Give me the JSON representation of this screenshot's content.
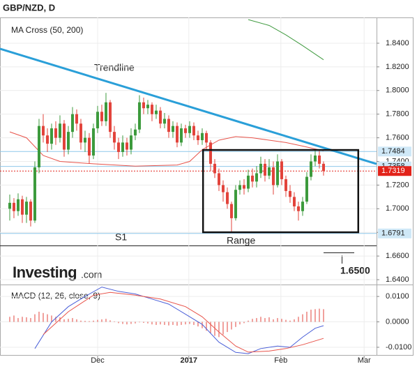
{
  "chart_data": [
    {
      "type": "candlestick",
      "title": "GBP/NZD, D",
      "indicator_label": "MA Cross (50, 200)",
      "categories": [
        null,
        null,
        null,
        null,
        null,
        null,
        null,
        null,
        null,
        null,
        null,
        null,
        null,
        null,
        null,
        null,
        null,
        null,
        null,
        null,
        null,
        null,
        null,
        null,
        null,
        null,
        null,
        null,
        null,
        null,
        null,
        null,
        null,
        null,
        null,
        null,
        null,
        null,
        null,
        null,
        null,
        null,
        null,
        null,
        null,
        null,
        null,
        null,
        null,
        null,
        null,
        null,
        null,
        null,
        null,
        null,
        null,
        null,
        null,
        null,
        null,
        null,
        null,
        null,
        null,
        null,
        null,
        null,
        null,
        null,
        null,
        null,
        null,
        null,
        null,
        null
      ],
      "open": [
        1.7,
        1.705,
        1.698,
        1.708,
        1.695,
        1.706,
        1.69,
        1.735,
        1.77,
        1.762,
        1.755,
        1.768,
        1.76,
        1.772,
        1.75,
        1.765,
        1.78,
        1.772,
        1.756,
        1.76,
        1.745,
        1.768,
        1.782,
        1.774,
        1.79,
        1.765,
        1.756,
        1.748,
        1.756,
        1.75,
        1.762,
        1.767,
        1.79,
        1.785,
        1.788,
        1.78,
        1.783,
        1.772,
        1.776,
        1.765,
        1.77,
        1.756,
        1.768,
        1.764,
        1.77,
        1.762,
        1.758,
        1.764,
        1.756,
        1.738,
        1.73,
        1.72,
        1.714,
        1.704,
        1.692,
        1.716,
        1.72,
        1.717,
        1.728,
        1.723,
        1.73,
        1.738,
        1.728,
        1.735,
        1.72,
        1.74,
        1.725,
        1.715,
        1.71,
        1.702,
        1.698,
        1.706,
        1.727,
        1.74,
        1.745,
        1.738
      ],
      "high": [
        1.712,
        1.709,
        1.713,
        1.711,
        1.71,
        1.708,
        1.74,
        1.776,
        1.78,
        1.768,
        1.772,
        1.774,
        1.779,
        1.775,
        1.77,
        1.786,
        1.784,
        1.776,
        1.766,
        1.764,
        1.772,
        1.787,
        1.788,
        1.798,
        1.792,
        1.77,
        1.76,
        1.762,
        1.76,
        1.768,
        1.772,
        1.796,
        1.794,
        1.792,
        1.79,
        1.788,
        1.786,
        1.781,
        1.779,
        1.774,
        1.773,
        1.772,
        1.771,
        1.774,
        1.773,
        1.766,
        1.768,
        1.766,
        1.758,
        1.742,
        1.734,
        1.724,
        1.718,
        1.706,
        1.72,
        1.724,
        1.725,
        1.733,
        1.734,
        1.736,
        1.744,
        1.742,
        1.742,
        1.74,
        1.746,
        1.742,
        1.728,
        1.72,
        1.714,
        1.706,
        1.71,
        1.731,
        1.746,
        1.75,
        1.749,
        1.74
      ],
      "low": [
        1.69,
        1.692,
        1.694,
        1.688,
        1.688,
        1.685,
        1.688,
        1.73,
        1.756,
        1.748,
        1.75,
        1.754,
        1.756,
        1.744,
        1.746,
        1.76,
        1.766,
        1.75,
        1.748,
        1.738,
        1.742,
        1.764,
        1.77,
        1.77,
        1.76,
        1.75,
        1.742,
        1.744,
        1.745,
        1.746,
        1.758,
        1.764,
        1.78,
        1.78,
        1.774,
        1.776,
        1.768,
        1.768,
        1.76,
        1.76,
        1.752,
        1.753,
        1.76,
        1.76,
        1.758,
        1.754,
        1.754,
        1.75,
        1.732,
        1.726,
        1.715,
        1.706,
        1.7,
        1.68,
        1.69,
        1.712,
        1.712,
        1.714,
        1.718,
        1.718,
        1.726,
        1.723,
        1.725,
        1.712,
        1.718,
        1.72,
        1.71,
        1.705,
        1.698,
        1.69,
        1.694,
        1.704,
        1.724,
        1.736,
        1.734,
        1.728
      ],
      "close": [
        1.705,
        1.698,
        1.708,
        1.695,
        1.706,
        1.69,
        1.735,
        1.77,
        1.762,
        1.755,
        1.768,
        1.76,
        1.772,
        1.75,
        1.765,
        1.78,
        1.772,
        1.756,
        1.76,
        1.745,
        1.768,
        1.782,
        1.774,
        1.79,
        1.765,
        1.756,
        1.748,
        1.756,
        1.75,
        1.762,
        1.767,
        1.79,
        1.785,
        1.788,
        1.78,
        1.783,
        1.772,
        1.776,
        1.765,
        1.77,
        1.756,
        1.768,
        1.764,
        1.77,
        1.762,
        1.758,
        1.764,
        1.756,
        1.738,
        1.73,
        1.72,
        1.714,
        1.704,
        1.692,
        1.716,
        1.72,
        1.717,
        1.728,
        1.723,
        1.73,
        1.738,
        1.728,
        1.735,
        1.72,
        1.74,
        1.725,
        1.715,
        1.71,
        1.702,
        1.698,
        1.706,
        1.727,
        1.74,
        1.745,
        1.738,
        1.7319
      ],
      "up_color": "#3c9a3c",
      "down_color": "#e2433b",
      "moving_averages": [
        {
          "color": "#e8534a",
          "x": [
            0,
            4,
            8,
            12,
            20,
            30,
            40,
            43,
            46,
            50,
            54,
            58,
            62,
            66,
            70,
            75
          ],
          "values": [
            1.765,
            1.76,
            1.745,
            1.74,
            1.738,
            1.736,
            1.737,
            1.74,
            1.75,
            1.758,
            1.761,
            1.76,
            1.758,
            1.756,
            1.753,
            1.749
          ]
        },
        {
          "color": "#3f9a3f",
          "x": [
            57,
            62,
            66,
            70,
            75
          ],
          "values": [
            1.86,
            1.855,
            1.847,
            1.838,
            1.826
          ]
        }
      ],
      "xlim": [
        -2.33,
        87.67
      ],
      "xticks": [
        {
          "value": 21,
          "label": "Dec"
        },
        {
          "value": 42.8,
          "label": "2017"
        },
        {
          "value": 64.8,
          "label": "Feb"
        },
        {
          "value": 84.7,
          "label": "Mar"
        }
      ],
      "ylim": [
        1.6359,
        1.8618
      ],
      "yticks": [
        {
          "value": 1.64,
          "label": "1.6400"
        },
        {
          "value": 1.66,
          "label": "1.6600"
        },
        {
          "value": 1.68,
          "label": "1.6800"
        },
        {
          "value": 1.7,
          "label": "1.7000"
        },
        {
          "value": 1.72,
          "label": "1.7200"
        },
        {
          "value": 1.74,
          "label": "1.7400"
        },
        {
          "value": 1.76,
          "label": "1.7600"
        },
        {
          "value": 1.78,
          "label": "1.7800"
        },
        {
          "value": 1.8,
          "label": "1.8000"
        },
        {
          "value": 1.82,
          "label": "1.8200"
        },
        {
          "value": 1.84,
          "label": "1.8400"
        }
      ],
      "grid": true,
      "levels": [
        1.7484,
        1.7358,
        1.6791
      ],
      "level_color": "#8ec8ea",
      "current_price": 1.7319,
      "current_price_color": "#e2231a",
      "trendline": {
        "label": "Trendline",
        "color": "#2a9fd8",
        "x": [
          -2.33,
          87.67
        ],
        "y": [
          1.8353,
          1.7379
        ]
      },
      "range_box": {
        "label": "Range",
        "x": [
          46.2,
          83.3
        ],
        "y": [
          1.6801,
          1.7497
        ]
      },
      "support_label": "S1",
      "target_label": "1.6500",
      "logo": {
        "name": "Investing",
        "suffix": ".com"
      }
    },
    {
      "type": "macd",
      "title": "MACD (12, 26, close, 9)",
      "series": [
        {
          "color": "#4a5fd8",
          "x": [
            6,
            10,
            14,
            18,
            22,
            26,
            30,
            34,
            38,
            42,
            46,
            50,
            54,
            57,
            60,
            64,
            67,
            70,
            73,
            75
          ],
          "values": [
            -0.0105,
            0.0,
            0.006,
            0.01,
            0.0137,
            0.012,
            0.011,
            0.009,
            0.007,
            0.003,
            -0.001,
            -0.008,
            -0.012,
            -0.0125,
            -0.0105,
            -0.0095,
            -0.01,
            -0.006,
            -0.0025,
            -0.0015
          ]
        },
        {
          "color": "#e8534a",
          "x": [
            8,
            14,
            20,
            24,
            30,
            36,
            42,
            46,
            50,
            54,
            57,
            62,
            66,
            70,
            75
          ],
          "values": [
            -0.005,
            0.004,
            0.0105,
            0.0116,
            0.0105,
            0.009,
            0.006,
            0.002,
            -0.004,
            -0.0095,
            -0.0119,
            -0.0115,
            -0.0105,
            -0.009,
            -0.0065
          ]
        }
      ],
      "histogram": {
        "color": "#e2433b",
        "values": [
          0.002,
          0.0025,
          0.0015,
          0.002,
          0.0018,
          0.0015,
          0.003,
          0.004,
          0.0035,
          0.003,
          0.0025,
          0.002,
          0.0018,
          0.001,
          0.0012,
          0.0015,
          0.001,
          0.0005,
          0.0004,
          0.0003,
          0.0005,
          0.0008,
          0.001,
          0.0012,
          0.0006,
          0.0002,
          -0.0005,
          -0.0008,
          -0.001,
          -0.0008,
          -0.0006,
          -0.0002,
          -0.0004,
          -0.0006,
          -0.001,
          -0.0012,
          -0.001,
          -0.0012,
          -0.0014,
          -0.0012,
          -0.0015,
          -0.0012,
          -0.001,
          -0.0008,
          -0.0012,
          -0.0018,
          -0.0025,
          -0.0035,
          -0.0045,
          -0.0055,
          -0.006,
          -0.005,
          -0.004,
          -0.003,
          -0.002,
          -0.001,
          -0.0005,
          0.0005,
          0.0012,
          0.0015,
          0.002,
          0.0015,
          0.0018,
          0.001,
          0.0015,
          0.0012,
          0.0008,
          0.0005,
          0.001,
          0.002,
          0.003,
          0.004,
          0.0048,
          0.005,
          0.0052,
          0.005
        ]
      },
      "ylim": [
        -0.0133,
        0.0147
      ],
      "yticks": [
        {
          "value": 0.01,
          "label": "0.0100"
        },
        {
          "value": 0,
          "label": "0.0000"
        },
        {
          "value": -0.01,
          "label": "-0.0100"
        }
      ]
    }
  ]
}
